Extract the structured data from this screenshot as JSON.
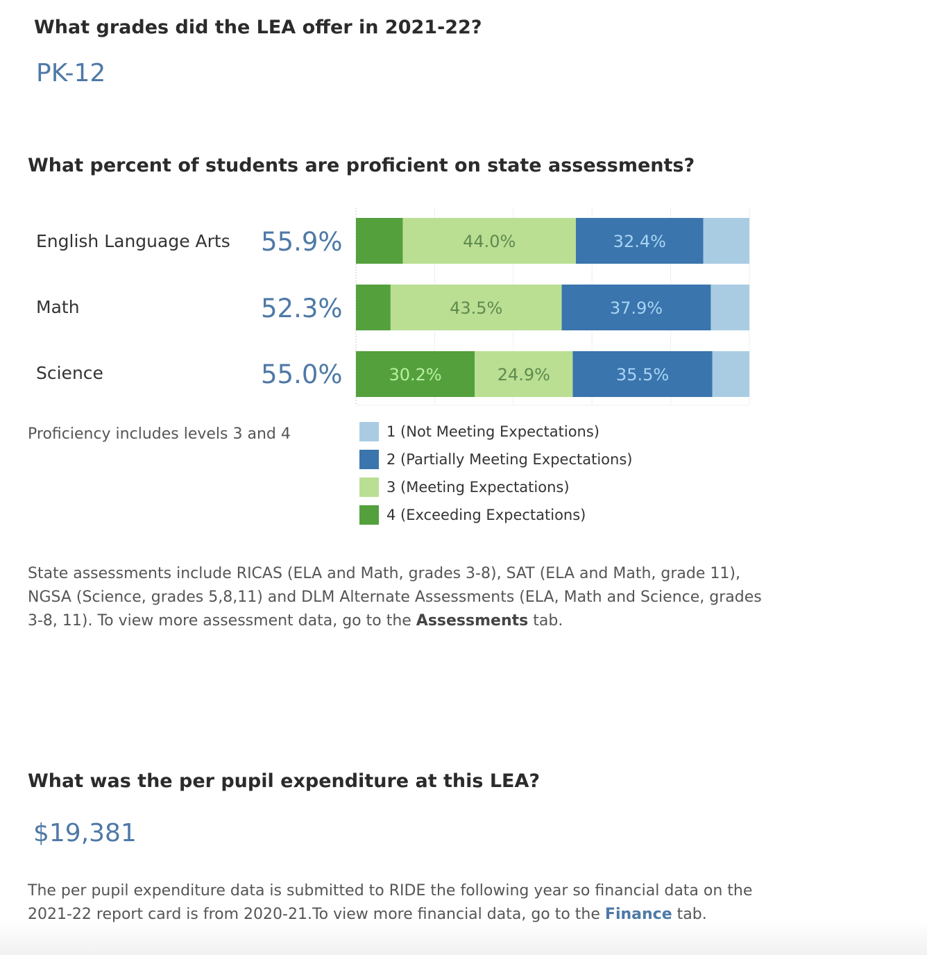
{
  "grades": {
    "question": "What grades did the LEA offer in 2021-22?",
    "value": "PK-12"
  },
  "proficiency": {
    "question": "What percent of students are proficient on state assessments?",
    "rows": [
      {
        "subject": "English Language Arts",
        "proficient": "55.9%"
      },
      {
        "subject": "Math",
        "proficient": "52.3%"
      },
      {
        "subject": "Science",
        "proficient": "55.0%"
      }
    ],
    "footnote": "Proficiency includes levels 3 and 4",
    "legend": [
      {
        "label": "1 (Not Meeting Expectations)",
        "color": "#a9cce3"
      },
      {
        "label": "2 (Partially Meeting Expectations)",
        "color": "#3a75ad"
      },
      {
        "label": "3 (Meeting Expectations)",
        "color": "#badf93"
      },
      {
        "label": "4 (Exceeding Expectations)",
        "color": "#54a03d"
      }
    ],
    "note_part1": "State assessments include RICAS (ELA and Math, grades 3-8), SAT (ELA and Math, grade 11), NGSA (Science, grades 5,8,11) and DLM Alternate Assessments (ELA, Math and Science, grades 3-8, 11). To view more assessment data, go to the ",
    "note_bold": "Assessments",
    "note_part2": " tab."
  },
  "chart_data": {
    "type": "bar",
    "orientation": "horizontal",
    "stacked": true,
    "categories": [
      "English Language Arts",
      "Math",
      "Science"
    ],
    "series": [
      {
        "name": "4 (Exceeding Expectations)",
        "values": [
          11.9,
          8.8,
          30.2
        ],
        "color": "#54a03d",
        "labels": [
          "",
          "",
          "30.2%"
        ],
        "label_color": "#b8f0a0"
      },
      {
        "name": "3 (Meeting Expectations)",
        "values": [
          44.0,
          43.5,
          24.9
        ],
        "color": "#badf93",
        "labels": [
          "44.0%",
          "43.5%",
          "24.9%"
        ],
        "label_color": "#5f8a4e"
      },
      {
        "name": "2 (Partially Meeting Expectations)",
        "values": [
          32.4,
          37.9,
          35.5
        ],
        "color": "#3a75ad",
        "labels": [
          "32.4%",
          "37.9%",
          "35.5%"
        ],
        "label_color": "#a9d4f5"
      },
      {
        "name": "1 (Not Meeting Expectations)",
        "values": [
          11.7,
          9.8,
          9.5
        ],
        "color": "#a9cce3",
        "labels": [
          "",
          "",
          ""
        ],
        "label_color": "#3a75ad"
      }
    ],
    "xlim": [
      0,
      100
    ],
    "grid": true
  },
  "expenditure": {
    "question": "What was the per pupil expenditure at this LEA?",
    "value": "$19,381",
    "note_part1": "The per pupil expenditure data is submitted to RIDE the following year so financial data on the 2021-22 report card is from 2020-21.To view more financial data, go to the ",
    "note_link": "Finance",
    "note_part2": " tab."
  }
}
